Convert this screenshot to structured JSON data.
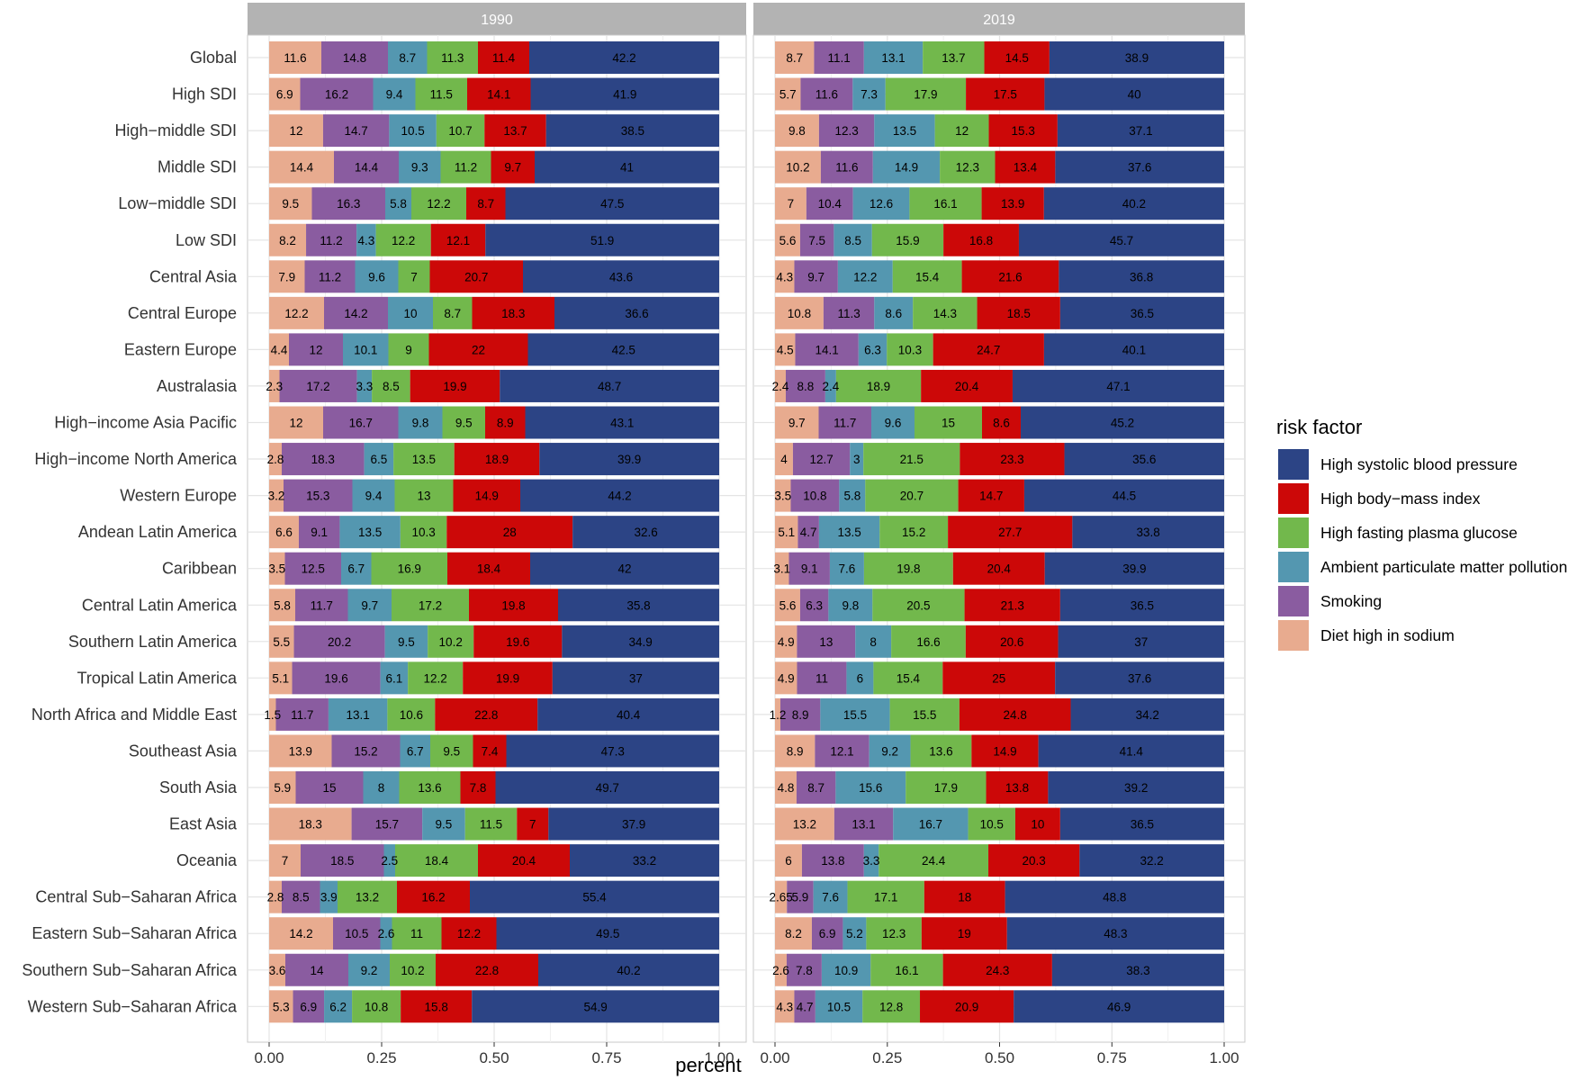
{
  "chart_data": {
    "type": "bar",
    "orientation": "horizontal",
    "stacked": true,
    "xlabel": "percent",
    "xlim": [
      0,
      1
    ],
    "xticks": [
      "0.00",
      "0.25",
      "0.50",
      "0.75",
      "1.00"
    ],
    "grid": true,
    "legend": {
      "title": "risk factor",
      "position": "right",
      "entries": [
        {
          "name": "High systolic blood pressure",
          "color": "#2c4485"
        },
        {
          "name": "High body−mass index",
          "color": "#cc0808"
        },
        {
          "name": "High fasting plasma glucose",
          "color": "#72b84c"
        },
        {
          "name": "Ambient particulate matter pollution",
          "color": "#5497b0"
        },
        {
          "name": "Smoking",
          "color": "#8a5ca0"
        },
        {
          "name": "Diet high in sodium",
          "color": "#e8ab8f"
        }
      ]
    },
    "series_order": [
      "Diet high in sodium",
      "Smoking",
      "Ambient particulate matter pollution",
      "High fasting plasma glucose",
      "High body−mass index",
      "High systolic blood pressure"
    ],
    "series_colors": [
      "#e8ab8f",
      "#8a5ca0",
      "#5497b0",
      "#72b84c",
      "#cc0808",
      "#2c4485"
    ],
    "categories": [
      "Global",
      "High SDI",
      "High−middle SDI",
      "Middle SDI",
      "Low−middle SDI",
      "Low SDI",
      "Central Asia",
      "Central Europe",
      "Eastern Europe",
      "Australasia",
      "High−income Asia Pacific",
      "High−income North America",
      "Western Europe",
      "Andean Latin America",
      "Caribbean",
      "Central Latin America",
      "Southern Latin America",
      "Tropical Latin America",
      "North Africa and Middle East",
      "Southeast Asia",
      "South Asia",
      "East Asia",
      "Oceania",
      "Central Sub−Saharan Africa",
      "Eastern Sub−Saharan Africa",
      "Southern Sub−Saharan Africa",
      "Western Sub−Saharan Africa"
    ],
    "panels": [
      {
        "title": "1990",
        "values": [
          [
            "11.6",
            "14.8",
            "8.7",
            "11.3",
            "11.4",
            "42.2"
          ],
          [
            "6.9",
            "16.2",
            "9.4",
            "11.5",
            "14.1",
            "41.9"
          ],
          [
            "12",
            "14.7",
            "10.5",
            "10.7",
            "13.7",
            "38.5"
          ],
          [
            "14.4",
            "14.4",
            "9.3",
            "11.2",
            "9.7",
            "41"
          ],
          [
            "9.5",
            "16.3",
            "5.8",
            "12.2",
            "8.7",
            "47.5"
          ],
          [
            "8.2",
            "11.2",
            "4.3",
            "12.2",
            "12.1",
            "51.9"
          ],
          [
            "7.9",
            "11.2",
            "9.6",
            "7",
            "20.7",
            "43.6"
          ],
          [
            "12.2",
            "14.2",
            "10",
            "8.7",
            "18.3",
            "36.6"
          ],
          [
            "4.4",
            "12",
            "10.1",
            "9",
            "22",
            "42.5"
          ],
          [
            "2.3",
            "17.2",
            "3.3",
            "8.5",
            "19.9",
            "48.7"
          ],
          [
            "12",
            "16.7",
            "9.8",
            "9.5",
            "8.9",
            "43.1"
          ],
          [
            "2.8",
            "18.3",
            "6.5",
            "13.5",
            "18.9",
            "39.9"
          ],
          [
            "3.2",
            "15.3",
            "9.4",
            "13",
            "14.9",
            "44.2"
          ],
          [
            "6.6",
            "9.1",
            "13.5",
            "10.3",
            "28",
            "32.6"
          ],
          [
            "3.5",
            "12.5",
            "6.7",
            "16.9",
            "18.4",
            "42"
          ],
          [
            "5.8",
            "11.7",
            "9.7",
            "17.2",
            "19.8",
            "35.8"
          ],
          [
            "5.5",
            "20.2",
            "9.5",
            "10.2",
            "19.6",
            "34.9"
          ],
          [
            "5.1",
            "19.6",
            "6.1",
            "12.2",
            "19.9",
            "37"
          ],
          [
            "1.5",
            "11.7",
            "13.1",
            "10.6",
            "22.8",
            "40.4"
          ],
          [
            "13.9",
            "15.2",
            "6.7",
            "9.5",
            "7.4",
            "47.3"
          ],
          [
            "5.9",
            "15",
            "8",
            "13.6",
            "7.8",
            "49.7"
          ],
          [
            "18.3",
            "15.7",
            "9.5",
            "11.5",
            "7",
            "37.9"
          ],
          [
            "7",
            "18.5",
            "2.5",
            "18.4",
            "20.4",
            "33.2"
          ],
          [
            "2.8",
            "8.5",
            "3.9",
            "13.2",
            "16.2",
            "55.4"
          ],
          [
            "14.2",
            "10.5",
            "2.6",
            "11",
            "12.2",
            "49.5"
          ],
          [
            "3.6",
            "14",
            "9.2",
            "10.2",
            "22.8",
            "40.2"
          ],
          [
            "5.3",
            "6.9",
            "6.2",
            "10.8",
            "15.8",
            "54.9"
          ]
        ]
      },
      {
        "title": "2019",
        "values": [
          [
            "8.7",
            "11.1",
            "13.1",
            "13.7",
            "14.5",
            "38.9"
          ],
          [
            "5.7",
            "11.6",
            "7.3",
            "17.9",
            "17.5",
            "40"
          ],
          [
            "9.8",
            "12.3",
            "13.5",
            "12",
            "15.3",
            "37.1"
          ],
          [
            "10.2",
            "11.6",
            "14.9",
            "12.3",
            "13.4",
            "37.6"
          ],
          [
            "7",
            "10.4",
            "12.6",
            "16.1",
            "13.9",
            "40.2"
          ],
          [
            "5.6",
            "7.5",
            "8.5",
            "15.9",
            "16.8",
            "45.7"
          ],
          [
            "4.3",
            "9.7",
            "12.2",
            "15.4",
            "21.6",
            "36.8"
          ],
          [
            "10.8",
            "11.3",
            "8.6",
            "14.3",
            "18.5",
            "36.5"
          ],
          [
            "4.5",
            "14.1",
            "6.3",
            "10.3",
            "24.7",
            "40.1"
          ],
          [
            "2.4",
            "8.8",
            "2.4",
            "18.9",
            "20.4",
            "47.1"
          ],
          [
            "9.7",
            "11.7",
            "9.6",
            "15",
            "8.6",
            "45.2"
          ],
          [
            "4",
            "12.7",
            "3",
            "21.5",
            "23.3",
            "35.6"
          ],
          [
            "3.5",
            "10.8",
            "5.8",
            "20.7",
            "14.7",
            "44.5"
          ],
          [
            "5.1",
            "4.7",
            "13.5",
            "15.2",
            "27.7",
            "33.8"
          ],
          [
            "3.1",
            "9.1",
            "7.6",
            "19.8",
            "20.4",
            "39.9"
          ],
          [
            "5.6",
            "6.3",
            "9.8",
            "20.5",
            "21.3",
            "36.5"
          ],
          [
            "4.9",
            "13",
            "8",
            "16.6",
            "20.6",
            "37"
          ],
          [
            "4.9",
            "11",
            "6",
            "15.4",
            "25",
            "37.6"
          ],
          [
            "1.2",
            "8.9",
            "15.5",
            "15.5",
            "24.8",
            "34.2"
          ],
          [
            "8.9",
            "12.1",
            "9.2",
            "13.6",
            "14.9",
            "41.4"
          ],
          [
            "4.8",
            "8.7",
            "15.6",
            "17.9",
            "13.8",
            "39.2"
          ],
          [
            "13.2",
            "13.1",
            "16.7",
            "10.5",
            "10",
            "36.5"
          ],
          [
            "6",
            "13.8",
            "3.3",
            "24.4",
            "20.3",
            "32.2"
          ],
          [
            "2.65",
            "5.9",
            "7.6",
            "17.1",
            "18",
            "48.8"
          ],
          [
            "8.2",
            "6.9",
            "5.2",
            "12.3",
            "19",
            "48.3"
          ],
          [
            "2.6",
            "7.8",
            "10.9",
            "16.1",
            "24.3",
            "38.3"
          ],
          [
            "4.3",
            "4.7",
            "10.5",
            "12.8",
            "20.9",
            "46.9"
          ]
        ]
      }
    ]
  }
}
